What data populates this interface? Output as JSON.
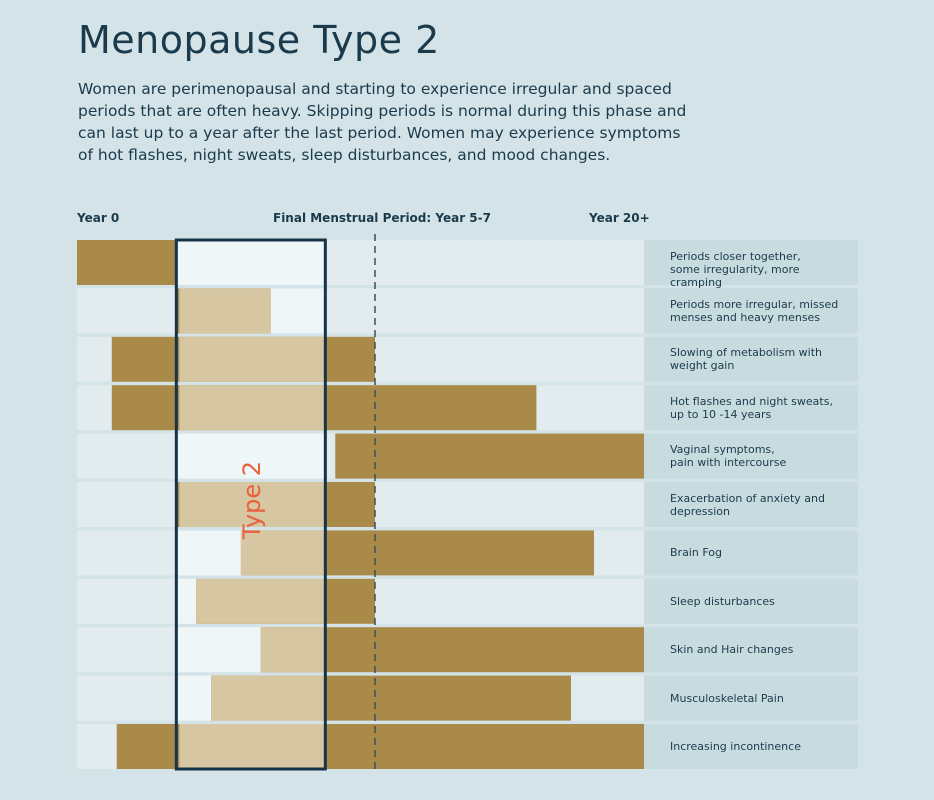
{
  "title": "Menopause Type 2",
  "description": "Women are perimenopausal and starting to experience irregular and spaced periods that are often heavy. Skipping periods is normal during this phase and can last up to a year after the last period. Women may experience symptoms of hot flashes, night sweats, sleep disturbances, and mood changes.",
  "colors": {
    "background": "#d3e3e8",
    "track": "#e2ecef",
    "box_fill": "#eff6f8",
    "label_cell": "#c8dce0",
    "bar_dark": "#a98a48",
    "bar_light": "#d6c6a1",
    "box_border": "#163447",
    "type_label": "#e8603c"
  },
  "chart_data": {
    "type": "bar",
    "orientation": "horizontal-range",
    "title": "Menopause Type 2",
    "x_unit": "years",
    "axis_labels": {
      "start": "Year 0",
      "fmp": "Final Menstrual Period: Year 5-7",
      "end": "Year 20+"
    },
    "xlim": [
      0,
      20
    ],
    "fmp_year": 6,
    "highlight": {
      "label": "Type 2",
      "start": 2,
      "end": 5
    },
    "series": [
      {
        "label": "Periods closer together,\nsome irregularity, more cramping",
        "start": 0,
        "end": 2
      },
      {
        "label": "Periods more irregular, missed\nmenses and heavy menses",
        "start": 2,
        "end": 3.9
      },
      {
        "label": "Slowing of metabolism with\nweight gain",
        "start": 0.7,
        "end": 6
      },
      {
        "label": "Hot flashes and night sweats,\nup to 10 -14 years",
        "start": 0.7,
        "end": 14.4
      },
      {
        "label": "Vaginal symptoms,\npain with intercourse",
        "start": 5.2,
        "end": 20
      },
      {
        "label": "Exacerbation of anxiety and\ndepression",
        "start": 2,
        "end": 6
      },
      {
        "label": "Brain Fog",
        "start": 3.3,
        "end": 17.4
      },
      {
        "label": "Sleep disturbances",
        "start": 2.4,
        "end": 6
      },
      {
        "label": "Skin and Hair changes",
        "start": 3.7,
        "end": 20
      },
      {
        "label": "Musculoskeletal Pain",
        "start": 2.7,
        "end": 16.2
      },
      {
        "label": "Increasing incontinence",
        "start": 0.8,
        "end": 20
      }
    ]
  }
}
